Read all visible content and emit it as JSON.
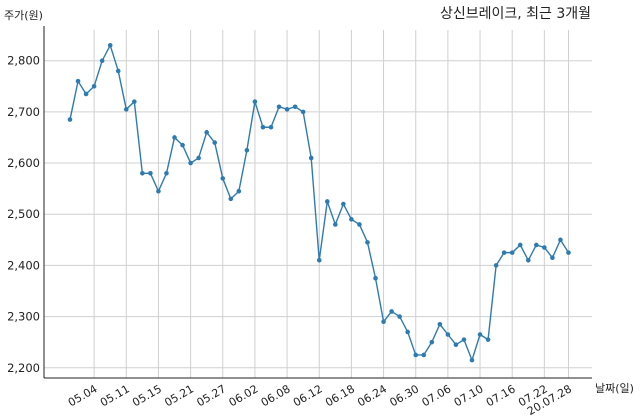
{
  "chart_data": {
    "type": "line",
    "title": "상신브레이크, 최근 3개월",
    "ylabel": "주가(원)",
    "xlabel": "날짜(일)",
    "ylim": [
      2180,
      2860
    ],
    "yticks": [
      2200,
      2300,
      2400,
      2500,
      2600,
      2700,
      2800
    ],
    "ytick_labels": [
      "2,200",
      "2,300",
      "2,400",
      "2,500",
      "2,600",
      "2,700",
      "2,800"
    ],
    "xticks": [
      "05.04",
      "05.11",
      "05.15",
      "05.21",
      "05.27",
      "06.02",
      "06.08",
      "06.12",
      "06.18",
      "06.24",
      "06.30",
      "07.06",
      "07.10",
      "07.16",
      "07.22",
      "20.07.28"
    ],
    "xtick_positions": [
      3,
      7,
      11,
      15,
      19,
      23,
      27,
      31,
      35,
      39,
      43,
      47,
      51,
      55,
      59,
      62
    ],
    "grid": true,
    "line_color": "#2e7bb0",
    "series": [
      {
        "values": [
          2685,
          2760,
          2735,
          2750,
          2800,
          2830,
          2780,
          2705,
          2720,
          2580,
          2580,
          2545,
          2580,
          2650,
          2635,
          2600,
          2610,
          2660,
          2640,
          2570,
          2530,
          2545,
          2625,
          2720,
          2670,
          2670,
          2710,
          2705,
          2710,
          2700,
          2610,
          2410,
          2525,
          2480,
          2520,
          2490,
          2480,
          2445,
          2375,
          2290,
          2310,
          2300,
          2270,
          2225,
          2225,
          2250,
          2285,
          2265,
          2245,
          2255,
          2215,
          2265,
          2255,
          2400,
          2425,
          2425,
          2440,
          2410,
          2440,
          2435,
          2415,
          2450,
          2425
        ]
      }
    ]
  }
}
